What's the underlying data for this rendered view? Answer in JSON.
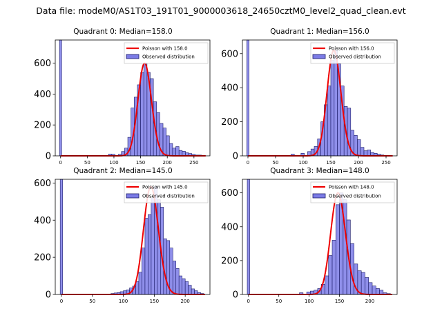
{
  "figure": {
    "suptitle": "Data file: modeM0/AS1T03_191T01_9000003618_24650cztM0_level2_quad_clean.evt",
    "colors": {
      "bar_fill": "#7b7be6",
      "bar_edge": "#1a1a66",
      "fit_line": "#ee0000"
    }
  },
  "chart_data": [
    {
      "type": "bar",
      "title": "Quadrant 0: Median=158.0",
      "median": 158.0,
      "xlim": [
        -10,
        280
      ],
      "ylim": [
        0,
        750
      ],
      "xticks": [
        0,
        50,
        100,
        150,
        200,
        250
      ],
      "yticks": [
        0,
        200,
        400,
        600
      ],
      "zero_bin": {
        "x": 0,
        "value": 750
      },
      "bin_width": 6,
      "bins": [
        [
          90,
          12
        ],
        [
          96,
          10
        ],
        [
          108,
          10
        ],
        [
          114,
          28
        ],
        [
          120,
          50
        ],
        [
          126,
          120
        ],
        [
          132,
          310
        ],
        [
          138,
          380
        ],
        [
          144,
          460
        ],
        [
          150,
          540
        ],
        [
          156,
          600
        ],
        [
          162,
          540
        ],
        [
          168,
          500
        ],
        [
          174,
          350
        ],
        [
          180,
          280
        ],
        [
          186,
          210
        ],
        [
          192,
          180
        ],
        [
          198,
          130
        ],
        [
          204,
          80
        ],
        [
          210,
          50
        ],
        [
          216,
          60
        ],
        [
          222,
          35
        ],
        [
          228,
          30
        ],
        [
          234,
          20
        ],
        [
          240,
          15
        ],
        [
          246,
          10
        ],
        [
          252,
          5
        ],
        [
          258,
          5
        ]
      ],
      "legend": [
        "Poisson with 158.0",
        "Observed distribution"
      ],
      "poisson_label": "Poisson with 158.0",
      "observed_label": "Observed distribution"
    },
    {
      "type": "bar",
      "title": "Quadrant 1: Median=156.0",
      "median": 156.0,
      "xlim": [
        -10,
        270
      ],
      "ylim": [
        0,
        680
      ],
      "xticks": [
        0,
        50,
        100,
        150,
        200,
        250
      ],
      "yticks": [
        0,
        200,
        400,
        600
      ],
      "zero_bin": {
        "x": 0,
        "value": 680
      },
      "bin_width": 6,
      "bins": [
        [
          78,
          10
        ],
        [
          96,
          15
        ],
        [
          108,
          25
        ],
        [
          114,
          40
        ],
        [
          120,
          55
        ],
        [
          126,
          100
        ],
        [
          132,
          200
        ],
        [
          138,
          300
        ],
        [
          144,
          410
        ],
        [
          150,
          560
        ],
        [
          156,
          620
        ],
        [
          162,
          540
        ],
        [
          168,
          410
        ],
        [
          174,
          290
        ],
        [
          180,
          280
        ],
        [
          186,
          150
        ],
        [
          192,
          120
        ],
        [
          198,
          95
        ],
        [
          204,
          50
        ],
        [
          210,
          30
        ],
        [
          216,
          35
        ],
        [
          222,
          20
        ],
        [
          228,
          15
        ],
        [
          234,
          10
        ],
        [
          240,
          5
        ]
      ],
      "legend": [
        "Poisson with 156.0",
        "Observed distribution"
      ],
      "poisson_label": "Poisson with 156.0",
      "observed_label": "Observed distribution"
    },
    {
      "type": "bar",
      "title": "Quadrant 2: Median=145.0",
      "median": 145.0,
      "xlim": [
        -10,
        240
      ],
      "ylim": [
        0,
        620
      ],
      "xticks": [
        0,
        50,
        100,
        150,
        200
      ],
      "yticks": [
        0,
        200,
        400,
        600
      ],
      "zero_bin": {
        "x": 0,
        "value": 620
      },
      "bin_width": 5,
      "bins": [
        [
          80,
          5
        ],
        [
          85,
          8
        ],
        [
          90,
          10
        ],
        [
          95,
          15
        ],
        [
          100,
          20
        ],
        [
          105,
          25
        ],
        [
          110,
          35
        ],
        [
          115,
          45
        ],
        [
          120,
          70
        ],
        [
          125,
          120
        ],
        [
          130,
          250
        ],
        [
          135,
          410
        ],
        [
          140,
          430
        ],
        [
          145,
          520
        ],
        [
          150,
          580
        ],
        [
          155,
          510
        ],
        [
          160,
          470
        ],
        [
          165,
          300
        ],
        [
          170,
          290
        ],
        [
          175,
          250
        ],
        [
          180,
          180
        ],
        [
          185,
          140
        ],
        [
          190,
          100
        ],
        [
          195,
          85
        ],
        [
          200,
          70
        ],
        [
          205,
          50
        ],
        [
          210,
          30
        ],
        [
          215,
          20
        ],
        [
          220,
          10
        ],
        [
          225,
          5
        ]
      ],
      "legend": [
        "Poisson with 145.0",
        "Observed distribution"
      ],
      "poisson_label": "Poisson with 145.0",
      "observed_label": "Observed distribution"
    },
    {
      "type": "bar",
      "title": "Quadrant 3: Median=148.0",
      "median": 148.0,
      "xlim": [
        -10,
        245
      ],
      "ylim": [
        0,
        680
      ],
      "xticks": [
        0,
        50,
        100,
        150,
        200
      ],
      "yticks": [
        0,
        200,
        400,
        600
      ],
      "zero_bin": {
        "x": 0,
        "value": 680
      },
      "bin_width": 6,
      "bins": [
        [
          84,
          10
        ],
        [
          96,
          15
        ],
        [
          102,
          20
        ],
        [
          108,
          25
        ],
        [
          114,
          35
        ],
        [
          120,
          60
        ],
        [
          126,
          110
        ],
        [
          132,
          230
        ],
        [
          138,
          320
        ],
        [
          144,
          530
        ],
        [
          150,
          600
        ],
        [
          156,
          560
        ],
        [
          162,
          440
        ],
        [
          168,
          300
        ],
        [
          174,
          180
        ],
        [
          180,
          140
        ],
        [
          186,
          130
        ],
        [
          192,
          100
        ],
        [
          198,
          70
        ],
        [
          204,
          50
        ],
        [
          210,
          35
        ],
        [
          216,
          25
        ],
        [
          222,
          10
        ],
        [
          228,
          5
        ]
      ],
      "legend": [
        "Poisson with 148.0",
        "Observed distribution"
      ],
      "poisson_label": "Poisson with 148.0",
      "observed_label": "Observed distribution"
    }
  ]
}
